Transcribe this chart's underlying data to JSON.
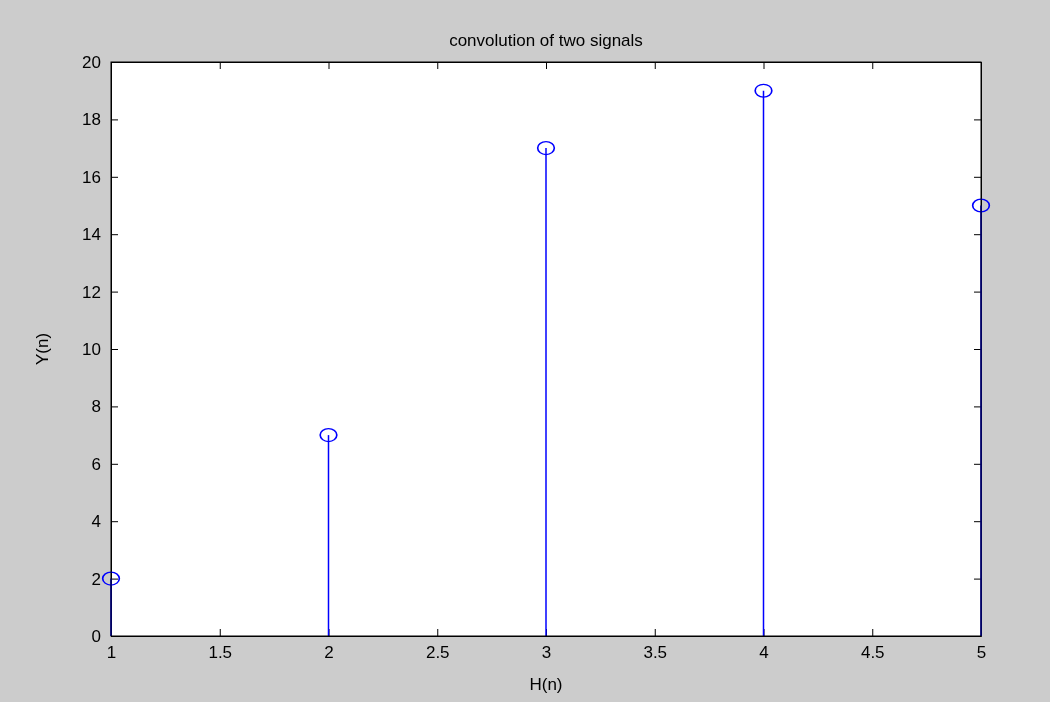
{
  "chart_data": {
    "type": "lollipop",
    "title": "convolution of two signals",
    "xlabel": "H(n)",
    "ylabel": "Y(n)",
    "x": [
      1,
      2,
      3,
      4,
      5
    ],
    "series": [
      {
        "color": "#0000ff",
        "values": [
          2,
          7,
          17,
          19,
          15
        ]
      }
    ],
    "xlim": [
      1,
      5
    ],
    "xticks": [
      1,
      1.5,
      2,
      2.5,
      3,
      3.5,
      4,
      4.5,
      5
    ],
    "ylim": [
      0,
      20
    ],
    "yticks": [
      0,
      2,
      4,
      6,
      8,
      10,
      12,
      14,
      16,
      18,
      20
    ],
    "marker": "circle"
  }
}
